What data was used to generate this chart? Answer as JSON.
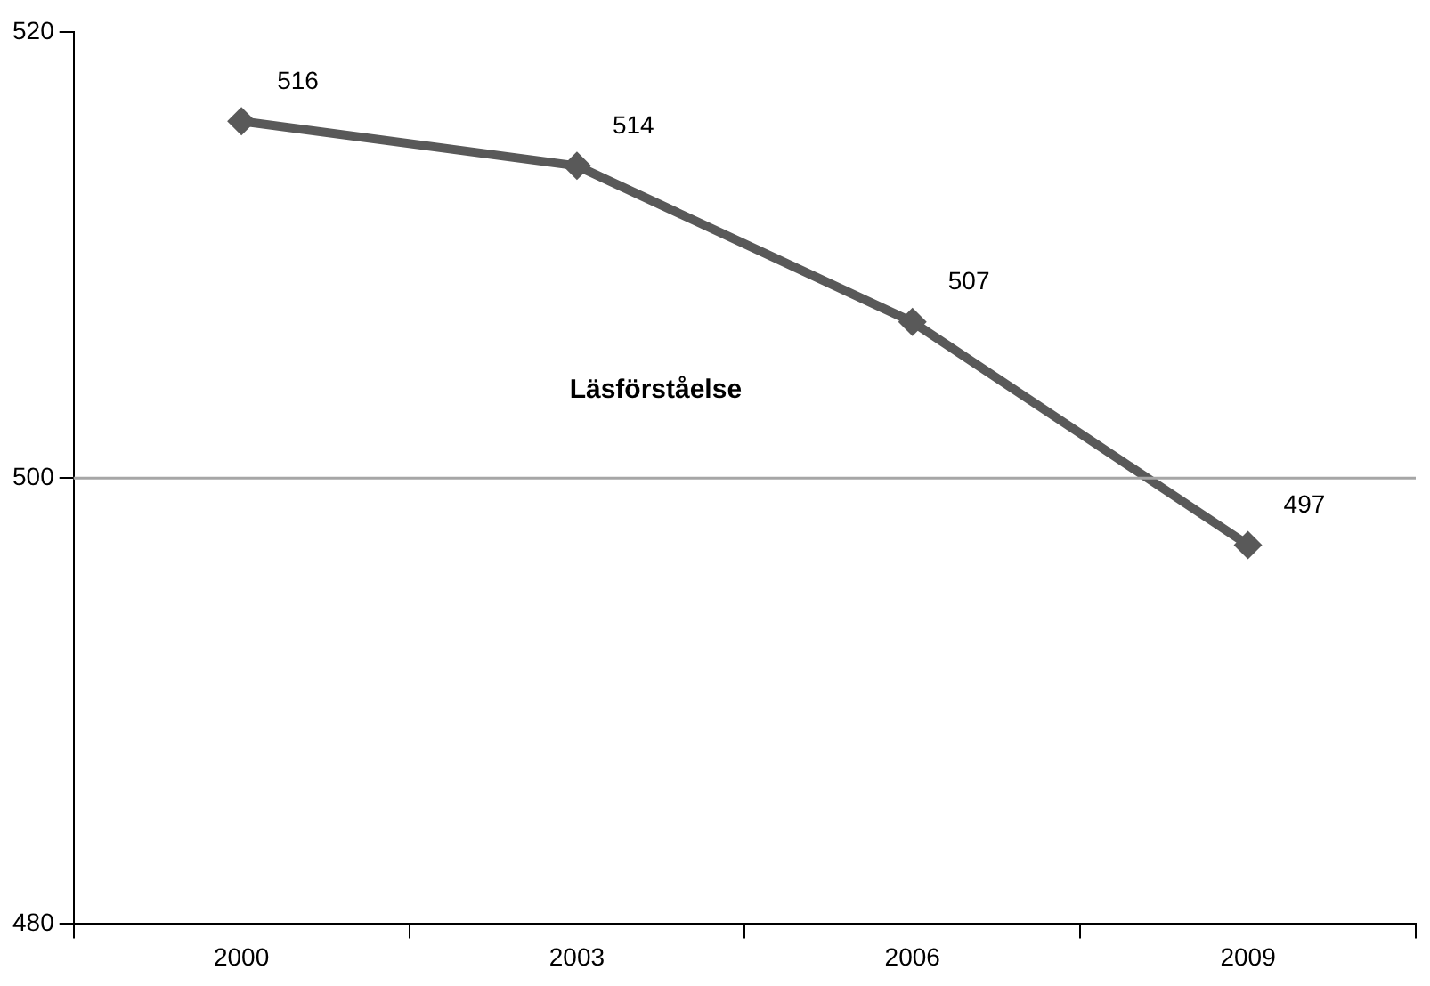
{
  "chart_data": {
    "type": "line",
    "categories": [
      "2000",
      "2003",
      "2006",
      "2009"
    ],
    "series": [
      {
        "name": "Läsförståelse",
        "color": "#595959",
        "values": [
          516,
          514,
          507,
          497
        ]
      }
    ],
    "ylim": [
      480,
      520
    ],
    "yticks": [
      480,
      500,
      520
    ],
    "grid": false,
    "legend": false,
    "marker": "diamond",
    "line_style": "solid",
    "data_labels": true,
    "ref_lines": [
      {
        "axis": "y",
        "value": 500,
        "color": "#a6a6a6"
      }
    ]
  }
}
